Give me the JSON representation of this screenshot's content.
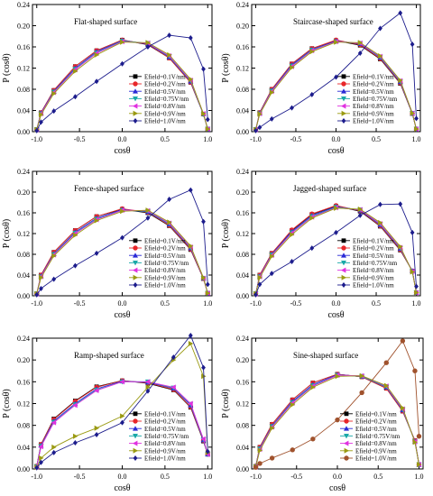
{
  "chart_data": [
    {
      "type": "line",
      "title": "Flat-shaped surface",
      "xlabel": "cosθ",
      "ylabel": "P (cosθ)",
      "xlim": [
        -1.05,
        1.05
      ],
      "ylim": [
        0,
        0.24
      ],
      "xticks": [
        "-1.0",
        "-0.5",
        "0.0",
        "0.5",
        "1.0"
      ],
      "yticks": [
        "0.00",
        "0.04",
        "0.08",
        "0.12",
        "0.16",
        "0.20",
        "0.24"
      ],
      "grid": false,
      "legend_position": "lower-right",
      "x": [
        -1.0,
        -0.95,
        -0.8,
        -0.55,
        -0.3,
        0.0,
        0.3,
        0.55,
        0.8,
        0.95,
        1.0
      ],
      "series": [
        {
          "name": "Efield=0.1V/nm",
          "color": "#000000",
          "marker": "square",
          "values": [
            0.004,
            0.036,
            0.078,
            0.123,
            0.153,
            0.173,
            0.164,
            0.139,
            0.093,
            0.033,
            0.005
          ]
        },
        {
          "name": "Efield=0.2V/nm",
          "color": "#e8262a",
          "marker": "circle",
          "values": [
            0.004,
            0.036,
            0.078,
            0.123,
            0.153,
            0.173,
            0.165,
            0.139,
            0.093,
            0.033,
            0.005
          ]
        },
        {
          "name": "Efield=0.5V/nm",
          "color": "#2b2bd6",
          "marker": "triangle-up",
          "values": [
            0.004,
            0.035,
            0.076,
            0.12,
            0.151,
            0.172,
            0.166,
            0.141,
            0.095,
            0.033,
            0.005
          ]
        },
        {
          "name": "Efield=0.75V/nm",
          "color": "#1aa8a8",
          "marker": "triangle-down",
          "values": [
            0.004,
            0.034,
            0.075,
            0.118,
            0.149,
            0.171,
            0.167,
            0.142,
            0.096,
            0.033,
            0.005
          ]
        },
        {
          "name": "Efield=0.8V/nm",
          "color": "#e031e0",
          "marker": "triangle-left",
          "values": [
            0.004,
            0.034,
            0.074,
            0.117,
            0.148,
            0.17,
            0.167,
            0.143,
            0.097,
            0.034,
            0.005
          ]
        },
        {
          "name": "Efield=0.9V/nm",
          "color": "#9a9a12",
          "marker": "triangle-right",
          "values": [
            0.004,
            0.032,
            0.072,
            0.114,
            0.145,
            0.169,
            0.168,
            0.145,
            0.099,
            0.034,
            0.005
          ]
        },
        {
          "name": "Efield=1.0V/nm",
          "color": "#1c1c8c",
          "marker": "diamond",
          "values": [
            0.002,
            0.018,
            0.039,
            0.066,
            0.095,
            0.128,
            0.16,
            0.182,
            0.177,
            0.118,
            0.023
          ]
        }
      ]
    },
    {
      "type": "line",
      "title": "Staircase-shaped surface",
      "xlabel": "cosθ",
      "ylabel": "P (cosθ)",
      "xlim": [
        -1.05,
        1.05
      ],
      "ylim": [
        0,
        0.24
      ],
      "xticks": [
        "-1.0",
        "-0.5",
        "0.0",
        "0.5",
        "1.0"
      ],
      "yticks": [
        "0.00",
        "0.04",
        "0.08",
        "0.12",
        "0.16",
        "0.20",
        "0.24"
      ],
      "grid": false,
      "legend_position": "lower-right",
      "x": [
        -1.0,
        -0.95,
        -0.8,
        -0.55,
        -0.3,
        0.0,
        0.3,
        0.55,
        0.8,
        0.95,
        1.0
      ],
      "series": [
        {
          "name": "Efield=0.1V/nm",
          "color": "#000000",
          "marker": "square",
          "values": [
            0.004,
            0.036,
            0.08,
            0.128,
            0.157,
            0.172,
            0.163,
            0.137,
            0.091,
            0.034,
            0.005
          ]
        },
        {
          "name": "Efield=0.2V/nm",
          "color": "#e8262a",
          "marker": "circle",
          "values": [
            0.004,
            0.036,
            0.08,
            0.128,
            0.157,
            0.173,
            0.164,
            0.138,
            0.092,
            0.034,
            0.005
          ]
        },
        {
          "name": "Efield=0.5V/nm",
          "color": "#2b2bd6",
          "marker": "triangle-up",
          "values": [
            0.004,
            0.035,
            0.078,
            0.126,
            0.155,
            0.171,
            0.166,
            0.14,
            0.094,
            0.034,
            0.005
          ]
        },
        {
          "name": "Efield=0.75V/nm",
          "color": "#1aa8a8",
          "marker": "triangle-down",
          "values": [
            0.004,
            0.034,
            0.077,
            0.124,
            0.154,
            0.17,
            0.167,
            0.141,
            0.095,
            0.035,
            0.005
          ]
        },
        {
          "name": "Efield=0.8V/nm",
          "color": "#e031e0",
          "marker": "triangle-left",
          "values": [
            0.004,
            0.034,
            0.076,
            0.123,
            0.153,
            0.17,
            0.167,
            0.142,
            0.096,
            0.035,
            0.005
          ]
        },
        {
          "name": "Efield=0.9V/nm",
          "color": "#9a9a12",
          "marker": "triangle-right",
          "values": [
            0.004,
            0.033,
            0.074,
            0.121,
            0.151,
            0.169,
            0.168,
            0.143,
            0.097,
            0.035,
            0.005
          ]
        },
        {
          "name": "Efield=1.0V/nm",
          "color": "#1c1c8c",
          "marker": "diamond",
          "values": [
            0.002,
            0.008,
            0.024,
            0.045,
            0.07,
            0.103,
            0.148,
            0.195,
            0.224,
            0.165,
            0.025
          ]
        }
      ]
    },
    {
      "type": "line",
      "title": "Fence-shaped surface",
      "xlabel": "cosθ",
      "ylabel": "P (cosθ)",
      "xlim": [
        -1.05,
        1.05
      ],
      "ylim": [
        0,
        0.24
      ],
      "xticks": [
        "-1.0",
        "-0.5",
        "0.0",
        "0.5",
        "1.0"
      ],
      "yticks": [
        "0.00",
        "0.04",
        "0.08",
        "0.12",
        "0.16",
        "0.20",
        "0.24"
      ],
      "grid": false,
      "legend_position": "lower-right",
      "x": [
        -1.0,
        -0.95,
        -0.8,
        -0.55,
        -0.3,
        0.0,
        0.3,
        0.55,
        0.8,
        0.95,
        1.0
      ],
      "series": [
        {
          "name": "Efield=0.1V/nm",
          "color": "#000000",
          "marker": "square",
          "values": [
            0.004,
            0.04,
            0.084,
            0.126,
            0.153,
            0.167,
            0.16,
            0.135,
            0.089,
            0.033,
            0.005
          ]
        },
        {
          "name": "Efield=0.2V/nm",
          "color": "#e8262a",
          "marker": "circle",
          "values": [
            0.004,
            0.04,
            0.084,
            0.126,
            0.153,
            0.168,
            0.161,
            0.136,
            0.09,
            0.033,
            0.005
          ]
        },
        {
          "name": "Efield=0.5V/nm",
          "color": "#2b2bd6",
          "marker": "triangle-up",
          "values": [
            0.004,
            0.038,
            0.081,
            0.123,
            0.15,
            0.166,
            0.162,
            0.138,
            0.092,
            0.034,
            0.005
          ]
        },
        {
          "name": "Efield=0.75V/nm",
          "color": "#1aa8a8",
          "marker": "triangle-down",
          "values": [
            0.004,
            0.037,
            0.08,
            0.121,
            0.148,
            0.165,
            0.163,
            0.139,
            0.093,
            0.034,
            0.005
          ]
        },
        {
          "name": "Efield=0.8V/nm",
          "color": "#e031e0",
          "marker": "triangle-left",
          "values": [
            0.004,
            0.037,
            0.079,
            0.12,
            0.147,
            0.165,
            0.164,
            0.14,
            0.094,
            0.034,
            0.005
          ]
        },
        {
          "name": "Efield=0.9V/nm",
          "color": "#9a9a12",
          "marker": "triangle-right",
          "values": [
            0.004,
            0.035,
            0.077,
            0.117,
            0.145,
            0.163,
            0.165,
            0.142,
            0.096,
            0.035,
            0.005
          ]
        },
        {
          "name": "Efield=1.0V/nm",
          "color": "#1c1c8c",
          "marker": "diamond",
          "values": [
            0.002,
            0.014,
            0.032,
            0.058,
            0.082,
            0.112,
            0.15,
            0.186,
            0.204,
            0.143,
            0.022
          ]
        }
      ]
    },
    {
      "type": "line",
      "title": "Jagged-shaped surface",
      "xlabel": "cosθ",
      "ylabel": "P (cosθ)",
      "xlim": [
        -1.05,
        1.05
      ],
      "ylim": [
        0,
        0.24
      ],
      "xticks": [
        "-1.0",
        "-0.5",
        "0.0",
        "0.5",
        "1.0"
      ],
      "yticks": [
        "0.00",
        "0.04",
        "0.08",
        "0.12",
        "0.16",
        "0.20",
        "0.24"
      ],
      "grid": false,
      "legend_position": "lower-right",
      "x": [
        -1.0,
        -0.95,
        -0.8,
        -0.55,
        -0.3,
        0.0,
        0.3,
        0.55,
        0.8,
        0.95,
        1.0
      ],
      "series": [
        {
          "name": "Efield=0.1V/nm",
          "color": "#000000",
          "marker": "square",
          "values": [
            0.004,
            0.04,
            0.082,
            0.126,
            0.157,
            0.173,
            0.163,
            0.134,
            0.088,
            0.048,
            0.006
          ]
        },
        {
          "name": "Efield=0.2V/nm",
          "color": "#e8262a",
          "marker": "circle",
          "values": [
            0.004,
            0.04,
            0.082,
            0.127,
            0.158,
            0.174,
            0.164,
            0.135,
            0.089,
            0.048,
            0.006
          ]
        },
        {
          "name": "Efield=0.5V/nm",
          "color": "#2b2bd6",
          "marker": "triangle-up",
          "values": [
            0.004,
            0.038,
            0.08,
            0.124,
            0.155,
            0.172,
            0.165,
            0.137,
            0.091,
            0.048,
            0.006
          ]
        },
        {
          "name": "Efield=0.75V/nm",
          "color": "#1aa8a8",
          "marker": "triangle-down",
          "values": [
            0.004,
            0.037,
            0.079,
            0.122,
            0.153,
            0.171,
            0.166,
            0.138,
            0.092,
            0.047,
            0.006
          ]
        },
        {
          "name": "Efield=0.8V/nm",
          "color": "#e031e0",
          "marker": "triangle-left",
          "values": [
            0.004,
            0.037,
            0.078,
            0.121,
            0.152,
            0.17,
            0.166,
            0.139,
            0.093,
            0.047,
            0.006
          ]
        },
        {
          "name": "Efield=0.9V/nm",
          "color": "#9a9a12",
          "marker": "triangle-right",
          "values": [
            0.004,
            0.035,
            0.076,
            0.118,
            0.15,
            0.169,
            0.167,
            0.141,
            0.095,
            0.046,
            0.006
          ]
        },
        {
          "name": "Efield=1.0V/nm",
          "color": "#1c1c8c",
          "marker": "diamond",
          "values": [
            0.002,
            0.022,
            0.043,
            0.066,
            0.092,
            0.122,
            0.155,
            0.176,
            0.177,
            0.122,
            0.018
          ]
        }
      ]
    },
    {
      "type": "line",
      "title": "Ramp-shaped surface",
      "xlabel": "cosθ",
      "ylabel": "P (cosθ)",
      "xlim": [
        -1.05,
        1.05
      ],
      "ylim": [
        0,
        0.24
      ],
      "xticks": [
        "-1.0",
        "-0.5",
        "0.0",
        "0.5",
        "1.0"
      ],
      "yticks": [
        "0.00",
        "0.04",
        "0.08",
        "0.12",
        "0.16",
        "0.20",
        "0.24"
      ],
      "grid": false,
      "legend_position": "lower-right",
      "x": [
        -1.0,
        -0.95,
        -0.8,
        -0.55,
        -0.3,
        0.0,
        0.3,
        0.6,
        0.8,
        0.95,
        1.0
      ],
      "series": [
        {
          "name": "Efield=0.1V/nm",
          "color": "#000000",
          "marker": "square",
          "values": [
            0.005,
            0.045,
            0.092,
            0.125,
            0.151,
            0.162,
            0.157,
            0.145,
            0.113,
            0.051,
            0.027
          ]
        },
        {
          "name": "Efield=0.2V/nm",
          "color": "#e8262a",
          "marker": "circle",
          "values": [
            0.005,
            0.045,
            0.091,
            0.124,
            0.15,
            0.162,
            0.158,
            0.146,
            0.114,
            0.052,
            0.027
          ]
        },
        {
          "name": "Efield=0.5V/nm",
          "color": "#2b2bd6",
          "marker": "triangle-up",
          "values": [
            0.004,
            0.043,
            0.088,
            0.12,
            0.147,
            0.161,
            0.159,
            0.148,
            0.117,
            0.053,
            0.027
          ]
        },
        {
          "name": "Efield=0.75V/nm",
          "color": "#1aa8a8",
          "marker": "triangle-down",
          "values": [
            0.004,
            0.042,
            0.086,
            0.118,
            0.145,
            0.16,
            0.16,
            0.149,
            0.119,
            0.054,
            0.027
          ]
        },
        {
          "name": "Efield=0.8V/nm",
          "color": "#e031e0",
          "marker": "triangle-left",
          "values": [
            0.004,
            0.041,
            0.085,
            0.117,
            0.144,
            0.16,
            0.16,
            0.15,
            0.12,
            0.055,
            0.027
          ]
        },
        {
          "name": "Efield=0.9V/nm",
          "color": "#9a9a12",
          "marker": "triangle-right",
          "values": [
            0.003,
            0.02,
            0.04,
            0.06,
            0.075,
            0.097,
            0.15,
            0.2,
            0.23,
            0.17,
            0.03
          ]
        },
        {
          "name": "Efield=1.0V/nm",
          "color": "#1c1c8c",
          "marker": "diamond",
          "values": [
            0.002,
            0.012,
            0.03,
            0.048,
            0.063,
            0.085,
            0.143,
            0.205,
            0.245,
            0.186,
            0.032
          ]
        }
      ]
    },
    {
      "type": "line",
      "title": "Sine-shaped surface",
      "xlabel": "cosθ",
      "ylabel": "P (cosθ)",
      "xlim": [
        -1.05,
        1.05
      ],
      "ylim": [
        0,
        0.24
      ],
      "xticks": [
        "-1.0",
        "-0.5",
        "0.0",
        "0.5",
        "1.0"
      ],
      "yticks": [
        "0.00",
        "0.04",
        "0.08",
        "0.12",
        "0.16",
        "0.20",
        "0.24"
      ],
      "grid": false,
      "legend_position": "lower-right",
      "x": [
        -1.0,
        -0.95,
        -0.8,
        -0.55,
        -0.3,
        0.0,
        0.3,
        0.6,
        0.8,
        0.95,
        1.0
      ],
      "series": [
        {
          "name": "Efield=0.1V/nm",
          "color": "#000000",
          "marker": "square",
          "values": [
            0.005,
            0.04,
            0.082,
            0.127,
            0.158,
            0.174,
            0.169,
            0.148,
            0.106,
            0.052,
            0.008
          ]
        },
        {
          "name": "Efield=0.2V/nm",
          "color": "#e8262a",
          "marker": "circle",
          "values": [
            0.005,
            0.04,
            0.082,
            0.127,
            0.158,
            0.174,
            0.169,
            0.148,
            0.106,
            0.052,
            0.008
          ]
        },
        {
          "name": "Efield=0.5V/nm",
          "color": "#2b2bd6",
          "marker": "triangle-up",
          "values": [
            0.005,
            0.038,
            0.079,
            0.124,
            0.155,
            0.173,
            0.17,
            0.15,
            0.108,
            0.051,
            0.008
          ]
        },
        {
          "name": "Efield=0.75V/nm",
          "color": "#1aa8a8",
          "marker": "triangle-down",
          "values": [
            0.004,
            0.037,
            0.078,
            0.122,
            0.153,
            0.172,
            0.17,
            0.151,
            0.109,
            0.05,
            0.008
          ]
        },
        {
          "name": "Efield=0.8V/nm",
          "color": "#e031e0",
          "marker": "triangle-left",
          "values": [
            0.004,
            0.036,
            0.077,
            0.121,
            0.152,
            0.172,
            0.171,
            0.152,
            0.11,
            0.05,
            0.008
          ]
        },
        {
          "name": "Efield=0.9V/nm",
          "color": "#9a9a12",
          "marker": "triangle-right",
          "values": [
            0.004,
            0.034,
            0.075,
            0.118,
            0.15,
            0.17,
            0.171,
            0.153,
            0.112,
            0.049,
            0.008
          ]
        },
        {
          "name": "Efield=1.0V/nm",
          "color": "#a0522d",
          "marker": "circle",
          "values": [
            0.003,
            0.01,
            0.02,
            0.035,
            0.055,
            0.09,
            0.14,
            0.195,
            0.235,
            0.18,
            0.06
          ]
        }
      ]
    }
  ]
}
